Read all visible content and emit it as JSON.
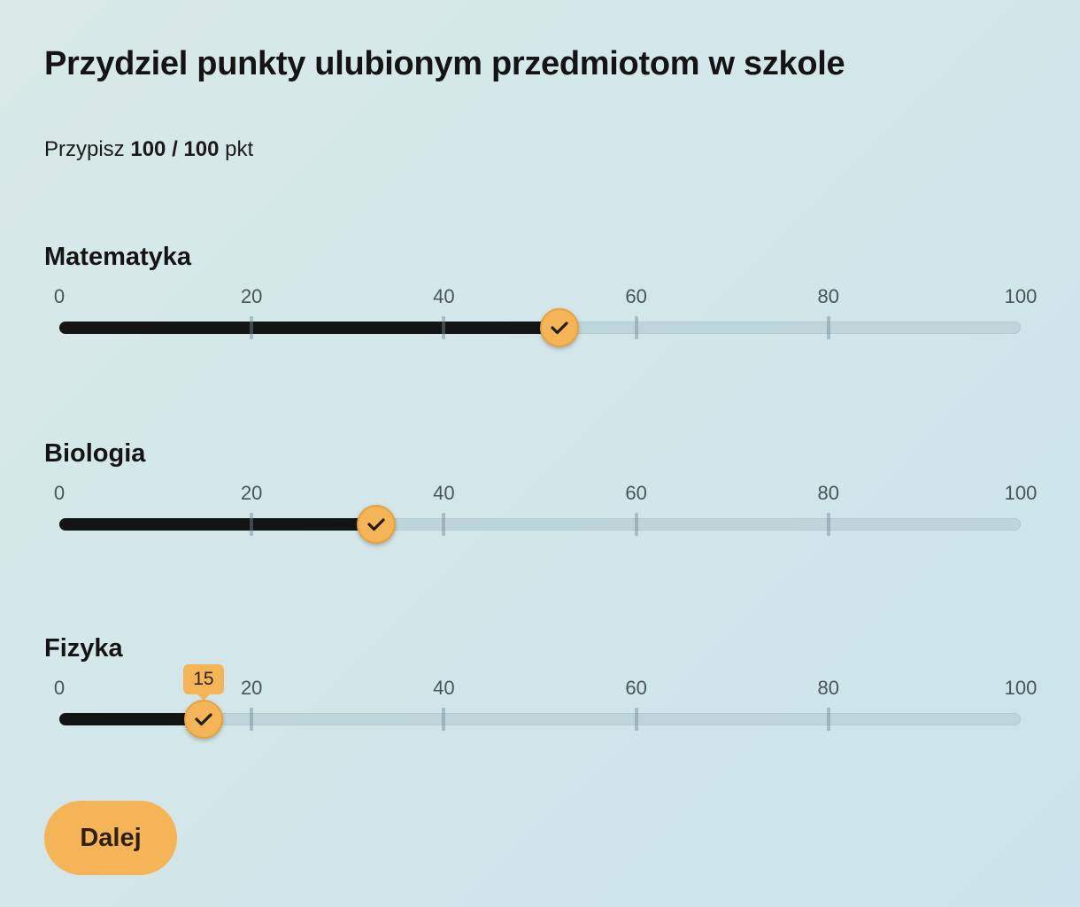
{
  "title": "Przydziel punkty ulubionym przedmiotom w szkole",
  "counter": {
    "prefix": "Przypisz",
    "value": "100 / 100",
    "suffix": "pkt"
  },
  "scale": {
    "min": 0,
    "max": 100,
    "ticks": [
      "0",
      "20",
      "40",
      "60",
      "80",
      "100"
    ]
  },
  "sliders": [
    {
      "label": "Matematyka",
      "value": 52,
      "tooltip": ""
    },
    {
      "label": "Biologia",
      "value": 33,
      "tooltip": ""
    },
    {
      "label": "Fizyka",
      "value": 15,
      "tooltip": "15"
    }
  ],
  "colors": {
    "accent": "#f5b557",
    "fill": "#141414",
    "track": "#bfd5dc"
  },
  "thumb_icon": "check-icon",
  "next_button": {
    "label": "Dalej"
  }
}
